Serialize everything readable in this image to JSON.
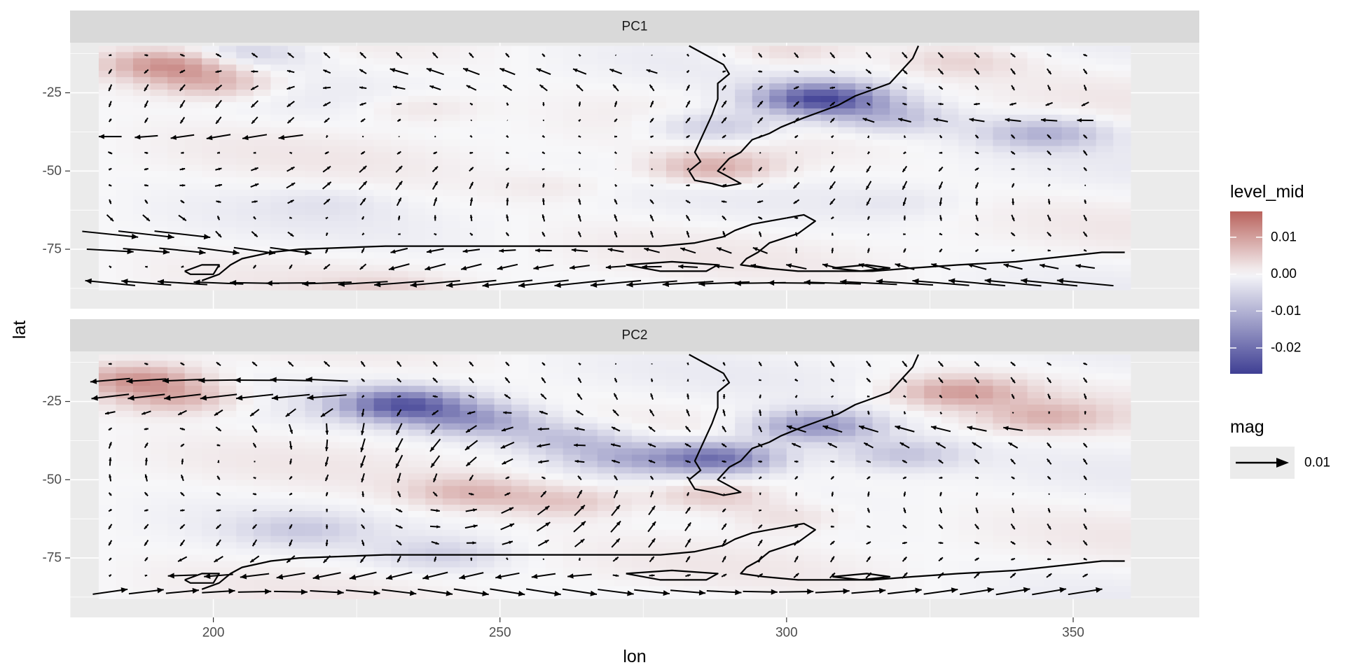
{
  "chart_data": {
    "type": "contour-vector",
    "xlabel": "lon",
    "ylabel": "lat",
    "xlim": [
      175,
      372
    ],
    "ylim": [
      -94,
      -9
    ],
    "x_ticks": [
      200,
      250,
      300,
      350
    ],
    "x_tick_labels": [
      "200",
      "250",
      "300",
      "350"
    ],
    "y_ticks": [
      -25,
      -50,
      -75
    ],
    "y_tick_labels": [
      "-25",
      "-50",
      "-75"
    ],
    "data_extent": {
      "lon": [
        180,
        359
      ],
      "lat": [
        -88,
        -10
      ]
    },
    "grid": true,
    "panels": [
      {
        "strip_label": "PC1",
        "anomalies": [
          {
            "lon": 192,
            "lat": -16,
            "value": 0.012
          },
          {
            "lon": 200,
            "lat": -22,
            "value": 0.008
          },
          {
            "lon": 206,
            "lat": -12,
            "value": -0.006
          },
          {
            "lon": 306,
            "lat": -27,
            "value": -0.025
          },
          {
            "lon": 318,
            "lat": -33,
            "value": -0.008
          },
          {
            "lon": 287,
            "lat": -49,
            "value": 0.009
          },
          {
            "lon": 288,
            "lat": -36,
            "value": -0.008
          },
          {
            "lon": 345,
            "lat": -38,
            "value": -0.01
          },
          {
            "lon": 300,
            "lat": -12,
            "value": 0.004
          },
          {
            "lon": 330,
            "lat": -15,
            "value": 0.004
          },
          {
            "lon": 236,
            "lat": -30,
            "value": 0.003
          },
          {
            "lon": 260,
            "lat": -55,
            "value": 0.002
          },
          {
            "lon": 220,
            "lat": -60,
            "value": -0.002
          },
          {
            "lon": 320,
            "lat": -60,
            "value": -0.002
          },
          {
            "lon": 230,
            "lat": -88,
            "value": 0.003
          }
        ],
        "vortices": [
          {
            "lon": 215,
            "lat": -45,
            "strength": 0.6
          },
          {
            "lon": 300,
            "lat": -48,
            "strength": -0.5
          }
        ],
        "jets": [
          {
            "lat": -70,
            "lon_min": 181,
            "lon_max": 200,
            "speed": 1.6
          },
          {
            "lat": -75,
            "lon_min": 181,
            "lon_max": 215,
            "speed": 1.4
          },
          {
            "lat": -86,
            "lon_min": 181,
            "lon_max": 359,
            "speed": -1.6
          },
          {
            "lat": -40,
            "lon_min": 181,
            "lon_max": 215,
            "speed": -0.8
          },
          {
            "lat": -20,
            "lon_min": 230,
            "lon_max": 280,
            "speed": -0.5
          },
          {
            "lat": -32,
            "lon_min": 310,
            "lon_max": 359,
            "speed": -0.6
          },
          {
            "lat": -78,
            "lon_min": 230,
            "lon_max": 300,
            "speed": -0.8
          },
          {
            "lat": -82,
            "lon_min": 300,
            "lon_max": 359,
            "speed": -0.6
          }
        ]
      },
      {
        "strip_label": "PC2",
        "anomalies": [
          {
            "lon": 187,
            "lat": -18,
            "value": 0.011
          },
          {
            "lon": 194,
            "lat": -24,
            "value": 0.008
          },
          {
            "lon": 233,
            "lat": -26,
            "value": -0.022
          },
          {
            "lon": 246,
            "lat": -31,
            "value": -0.012
          },
          {
            "lon": 262,
            "lat": -37,
            "value": -0.008
          },
          {
            "lon": 272,
            "lat": -43,
            "value": -0.009
          },
          {
            "lon": 305,
            "lat": -33,
            "value": -0.016
          },
          {
            "lon": 320,
            "lat": -42,
            "value": -0.008
          },
          {
            "lon": 288,
            "lat": -43,
            "value": -0.02
          },
          {
            "lon": 287,
            "lat": -55,
            "value": 0.007
          },
          {
            "lon": 330,
            "lat": -22,
            "value": 0.01
          },
          {
            "lon": 345,
            "lat": -30,
            "value": 0.007
          },
          {
            "lon": 245,
            "lat": -54,
            "value": 0.007
          },
          {
            "lon": 262,
            "lat": -57,
            "value": 0.006
          },
          {
            "lon": 215,
            "lat": -66,
            "value": -0.005
          },
          {
            "lon": 240,
            "lat": -74,
            "value": -0.005
          },
          {
            "lon": 300,
            "lat": -62,
            "value": 0.004
          }
        ],
        "vortices": [
          {
            "lon": 250,
            "lat": -52,
            "strength": 1.2
          },
          {
            "lon": 205,
            "lat": -40,
            "strength": -0.4
          }
        ],
        "jets": [
          {
            "lat": -19,
            "lon_min": 181,
            "lon_max": 225,
            "speed": -1.3
          },
          {
            "lat": -25,
            "lon_min": 181,
            "lon_max": 220,
            "speed": -1.2
          },
          {
            "lat": -86,
            "lon_min": 181,
            "lon_max": 355,
            "speed": 1.1
          },
          {
            "lat": -80,
            "lon_min": 190,
            "lon_max": 270,
            "speed": -1.0
          },
          {
            "lat": -35,
            "lon_min": 300,
            "lon_max": 345,
            "speed": -0.6
          }
        ]
      }
    ],
    "coastlines": {
      "south_america_west": [
        [
          283,
          -10
        ],
        [
          286,
          -13
        ],
        [
          289,
          -16
        ],
        [
          290,
          -19
        ],
        [
          288,
          -22
        ],
        [
          288,
          -27
        ],
        [
          287,
          -32
        ],
        [
          286,
          -36
        ],
        [
          285,
          -40
        ],
        [
          284,
          -44
        ],
        [
          285,
          -47
        ],
        [
          283,
          -50
        ],
        [
          284,
          -53
        ],
        [
          287,
          -54
        ],
        [
          289,
          -55
        ],
        [
          292,
          -54
        ],
        [
          290,
          -52
        ],
        [
          288,
          -50
        ],
        [
          290,
          -46
        ]
      ],
      "south_america_east": [
        [
          290,
          -46
        ],
        [
          292,
          -44
        ],
        [
          294,
          -40
        ],
        [
          297,
          -38
        ],
        [
          299,
          -36
        ],
        [
          303,
          -33
        ],
        [
          306,
          -31
        ],
        [
          309,
          -29
        ],
        [
          312,
          -26
        ],
        [
          315,
          -24
        ],
        [
          318,
          -22
        ],
        [
          320,
          -18
        ],
        [
          322,
          -14
        ],
        [
          323,
          -10
        ]
      ],
      "antarctic_peninsula": [
        [
          300,
          -65
        ],
        [
          297,
          -66
        ],
        [
          294,
          -67
        ],
        [
          291,
          -69
        ],
        [
          289,
          -71
        ],
        [
          284,
          -73
        ],
        [
          278,
          -74
        ],
        [
          266,
          -74
        ],
        [
          250,
          -74
        ],
        [
          230,
          -74
        ],
        [
          215,
          -75
        ],
        [
          210,
          -76
        ],
        [
          205,
          -78
        ],
        [
          203,
          -80
        ],
        [
          201,
          -83
        ],
        [
          198,
          -85
        ]
      ],
      "weddell_ross_coast": [
        [
          300,
          -65
        ],
        [
          303,
          -64
        ],
        [
          305,
          -66
        ],
        [
          302,
          -70
        ],
        [
          297,
          -73
        ],
        [
          295,
          -76
        ],
        [
          293,
          -78
        ],
        [
          292,
          -80
        ],
        [
          296,
          -81
        ],
        [
          302,
          -82
        ],
        [
          308,
          -82
        ],
        [
          315,
          -82
        ],
        [
          322,
          -81
        ],
        [
          330,
          -80
        ],
        [
          340,
          -79
        ],
        [
          350,
          -77
        ],
        [
          355,
          -76
        ],
        [
          359,
          -76
        ]
      ],
      "ice_shelf_loop": [
        [
          272,
          -80
        ],
        [
          280,
          -79
        ],
        [
          288,
          -80
        ],
        [
          286,
          -82
        ],
        [
          278,
          -82
        ],
        [
          272,
          -80
        ]
      ],
      "ross_loop": [
        [
          195,
          -82
        ],
        [
          198,
          -80
        ],
        [
          201,
          -80
        ],
        [
          200,
          -83
        ],
        [
          196,
          -83
        ],
        [
          195,
          -82
        ]
      ],
      "filchner_loop": [
        [
          308,
          -81
        ],
        [
          314,
          -80
        ],
        [
          318,
          -81
        ],
        [
          313,
          -82
        ],
        [
          308,
          -81
        ]
      ]
    }
  },
  "legend": {
    "fill_title": "level_mid",
    "fill_breaks": [
      0.01,
      0.0,
      -0.01,
      -0.02
    ],
    "fill_labels": [
      "0.01",
      "0.00",
      "-0.01",
      "-0.02"
    ],
    "fill_range": [
      -0.027,
      0.017
    ],
    "fill_colors": {
      "low": "#3f3f94",
      "mid": "#f7f7f9",
      "high": "#b9625c"
    },
    "arrow_title": "mag",
    "arrow_label": "0.01"
  }
}
